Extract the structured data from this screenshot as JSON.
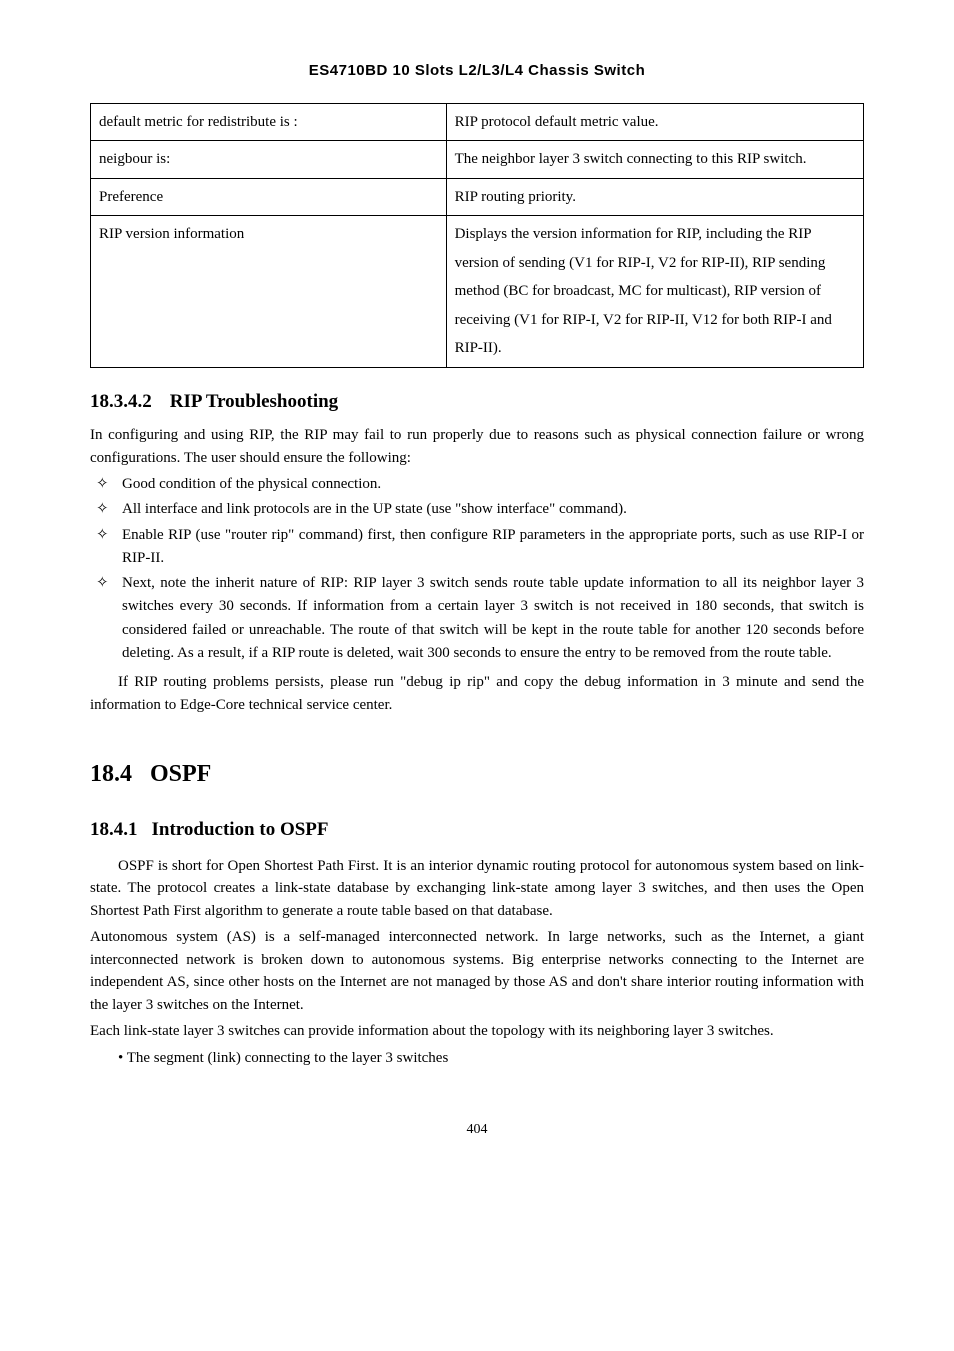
{
  "header": "ES4710BD 10 Slots L2/L3/L4 Chassis Switch",
  "table": {
    "rows": [
      [
        "default metric for redistribute is :",
        "RIP protocol default metric value."
      ],
      [
        "neigbour is:",
        "The neighbor layer 3 switch connecting to this RIP switch."
      ],
      [
        "Preference",
        "RIP routing priority."
      ],
      [
        "RIP version information",
        "Displays the version information for RIP, including the RIP version of sending (V1 for RIP-I, V2 for RIP-II), RIP sending method (BC for broadcast, MC for multicast), RIP version of receiving (V1 for RIP-I, V2 for RIP-II, V12 for both RIP-I and RIP-II)."
      ]
    ]
  },
  "section1": {
    "num": "18.3.4.2",
    "title": "RIP Troubleshooting",
    "para1": "In configuring and using RIP, the RIP may fail to run properly due to reasons such as physical connection failure or wrong configurations. The user should ensure the following:",
    "bullets": [
      "Good condition of the physical connection.",
      "All interface and link protocols are in the UP state (use \"show interface\" command).",
      "Enable RIP (use \"router rip\" command) first, then configure RIP parameters in the appropriate ports, such as use RIP-I or RIP-II.",
      "Next, note the inherit nature of RIP: RIP layer 3 switch sends route table update information to all its neighbor layer 3 switches every 30 seconds. If information from a certain layer 3 switch is not received in 180 seconds, that switch is considered failed or unreachable. The route of that switch will be kept in the route table for another 120 seconds before deleting. As a result, if a RIP route is deleted, wait 300 seconds to ensure the entry to be removed from the route table."
    ],
    "para2": "If RIP routing problems persists, please run \"debug ip rip\" and copy the debug information in 3 minute and send the information to Edge-Core technical service center."
  },
  "chapter": {
    "num": "18.4",
    "title": "OSPF"
  },
  "section2": {
    "num": "18.4.1",
    "title": "Introduction to OSPF",
    "para1": "OSPF is short for Open Shortest Path First. It is an interior dynamic routing protocol for autonomous system based on link-state. The protocol creates a link-state database by exchanging link-state among layer 3 switches, and then uses the Open Shortest Path First algorithm to generate a route table based on that database.",
    "para2": "Autonomous system (AS) is a self-managed interconnected network. In large networks, such as the Internet, a giant interconnected network is broken down to autonomous systems. Big enterprise networks connecting to the Internet are independent AS, since other hosts on the Internet are not managed by those AS and don't share interior routing information with the layer 3 switches on the Internet.",
    "para3": "Each link-state layer 3 switches can provide information about the topology with its neighboring layer 3 switches.",
    "bullet": "• The segment (link) connecting to the layer 3 switches"
  },
  "pageNumber": "404"
}
